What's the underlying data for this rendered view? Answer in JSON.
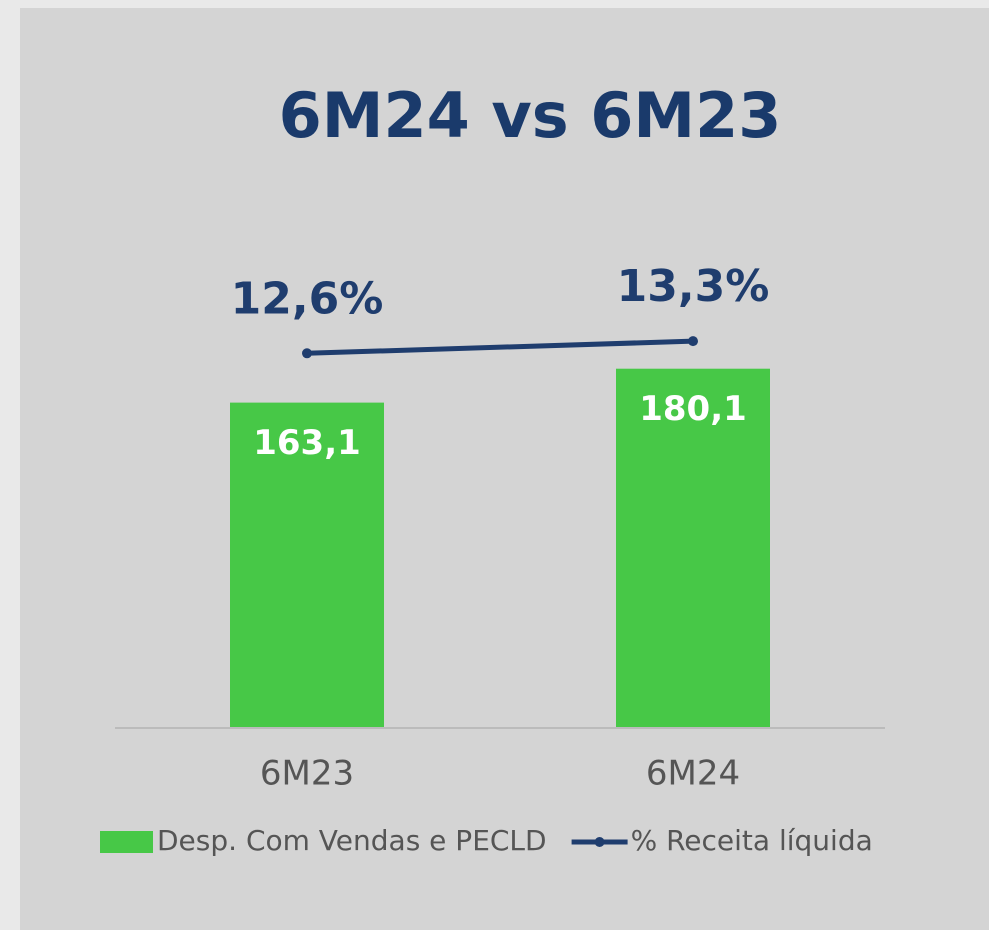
{
  "chart_data": {
    "type": "bar",
    "title": "6M24 vs 6M23",
    "categories": [
      "6M23",
      "6M24"
    ],
    "series": [
      {
        "name": "Desp. Com Vendas e PECLD",
        "type": "bar",
        "color": "#47c847",
        "values": [
          163.1,
          180.1
        ],
        "value_labels": [
          "163,1",
          "180,1"
        ]
      },
      {
        "name": "% Receita líquida",
        "type": "line",
        "axis": "y2",
        "color": "#1f3d6e",
        "values": [
          12.6,
          13.3
        ],
        "value_labels": [
          "12,6%",
          "13,3%"
        ]
      }
    ],
    "ylim": [
      0,
      200
    ],
    "y2lim": [
      -9,
      14
    ],
    "legend": "bottom"
  }
}
